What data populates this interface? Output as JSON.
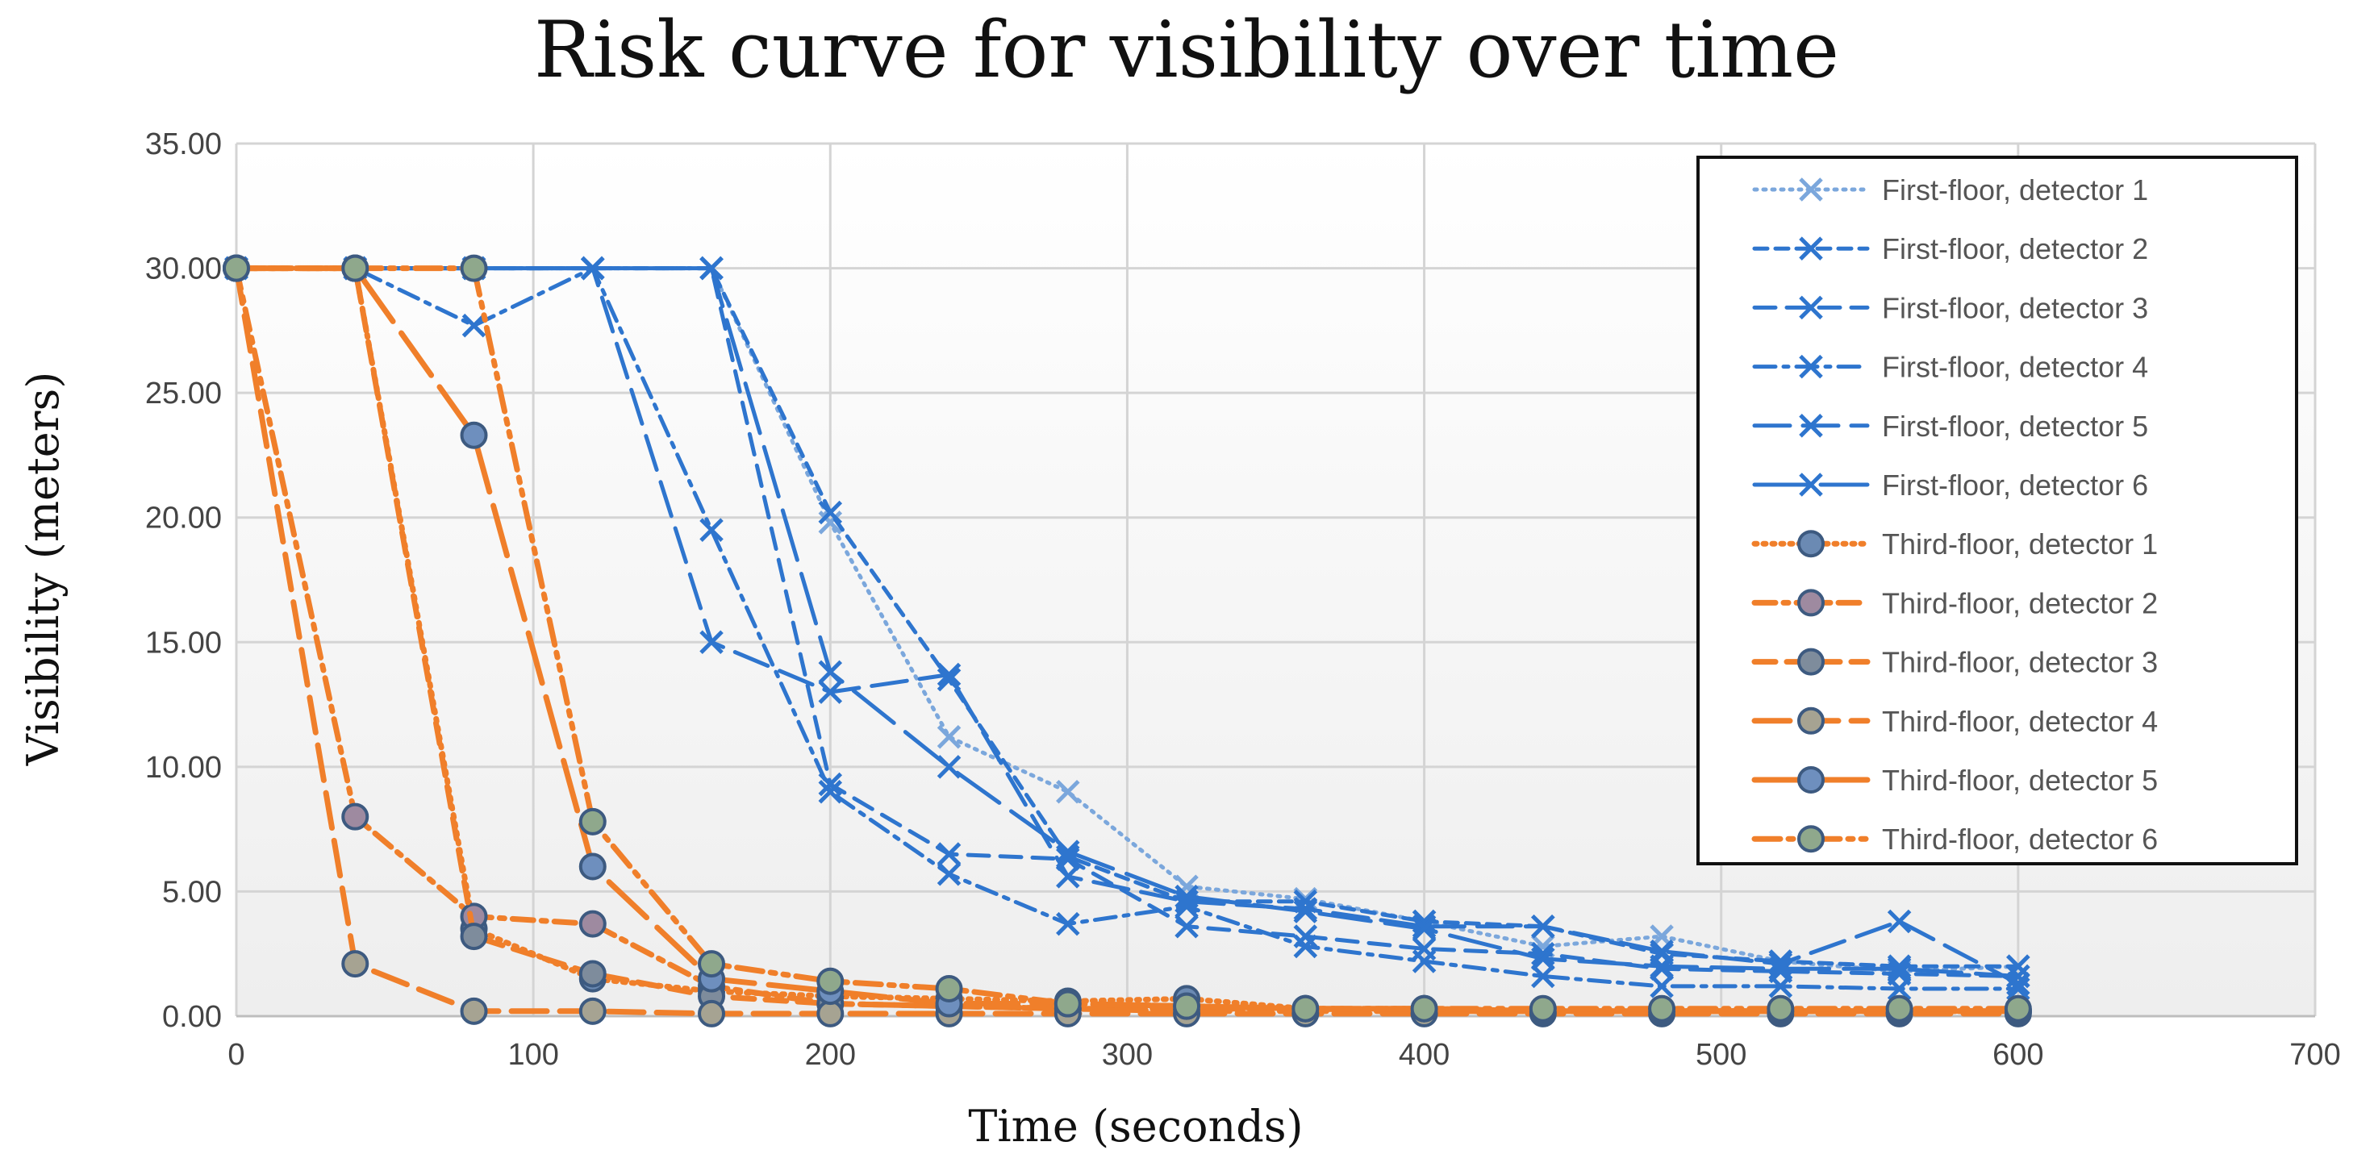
{
  "chart_data": {
    "type": "line",
    "title": "Risk curve for visibility over time",
    "xlabel": "Time (seconds)",
    "ylabel": "Visibility (meters)",
    "xlim": [
      0,
      700
    ],
    "ylim": [
      0,
      35
    ],
    "x_ticks": [
      0,
      100,
      200,
      300,
      400,
      500,
      600,
      700
    ],
    "y_ticks": [
      "0.00",
      "5.00",
      "10.00",
      "15.00",
      "20.00",
      "25.00",
      "30.00",
      "35.00"
    ],
    "y_tick_values": [
      0,
      5,
      10,
      15,
      20,
      25,
      30,
      35
    ],
    "grid": true,
    "legend_position": "top-right",
    "x": [
      0,
      40,
      80,
      120,
      160,
      200,
      240,
      280,
      320,
      360,
      400,
      440,
      480,
      520,
      560,
      600
    ],
    "series": [
      {
        "name": "First-floor, detector 1",
        "color": "#7BA7DC",
        "dash": "dot",
        "marker": "x",
        "values": [
          30,
          30,
          30,
          30,
          30,
          19.8,
          11.2,
          9.0,
          5.2,
          4.7,
          3.8,
          2.8,
          3.2,
          2.2,
          1.8,
          2.0
        ]
      },
      {
        "name": "First-floor, detector 2",
        "color": "#2E75CE",
        "dash": "short",
        "marker": "x",
        "values": [
          30,
          30,
          30,
          30,
          30,
          20.2,
          13.5,
          6.4,
          4.6,
          4.6,
          3.8,
          3.6,
          2.5,
          2.2,
          2.0,
          2.0
        ]
      },
      {
        "name": "First-floor, detector 3",
        "color": "#2E75CE",
        "dash": "medium",
        "marker": "x",
        "values": [
          30,
          30,
          30,
          30,
          30,
          9.3,
          6.5,
          6.3,
          3.6,
          3.2,
          2.7,
          2.5,
          1.9,
          1.8,
          1.7,
          1.6
        ]
      },
      {
        "name": "First-floor, detector 4",
        "color": "#2E75CE",
        "dash": "dashdot",
        "marker": "x",
        "values": [
          30,
          30,
          27.7,
          30,
          19.5,
          9.0,
          5.7,
          3.7,
          4.4,
          2.8,
          2.2,
          1.6,
          1.2,
          1.2,
          1.1,
          1.1
        ]
      },
      {
        "name": "First-floor, detector 5",
        "color": "#2E75CE",
        "dash": "long",
        "marker": "x",
        "values": [
          30,
          30,
          30,
          30,
          15.0,
          13.0,
          13.7,
          5.6,
          4.6,
          4.3,
          3.6,
          3.6,
          2.6,
          2.1,
          3.8,
          1.3
        ]
      },
      {
        "name": "First-floor, detector 6",
        "color": "#2E75CE",
        "dash": "longer",
        "marker": "x",
        "values": [
          30,
          30,
          30,
          30,
          30,
          13.8,
          10.0,
          6.6,
          4.8,
          4.2,
          3.5,
          2.3,
          2.0,
          1.9,
          1.9,
          1.6
        ]
      },
      {
        "name": "Third-floor, detector 1",
        "color": "#F07F2A",
        "dash": "dot",
        "marker": "circle",
        "markerFill": "#6B8AB3",
        "values": [
          30,
          30,
          3.5,
          1.5,
          1.0,
          0.8,
          0.7,
          0.6,
          0.7,
          0.3,
          0.3,
          0.2,
          0.2,
          0.2,
          0.2,
          0.2
        ]
      },
      {
        "name": "Third-floor, detector 2",
        "color": "#F07F2A",
        "dash": "dashdot",
        "marker": "circle",
        "markerFill": "#9E8AA0",
        "values": [
          30,
          8.0,
          4.0,
          3.7,
          1.2,
          0.5,
          0.4,
          0.3,
          0.2,
          0.2,
          0.2,
          0.2,
          0.2,
          0.2,
          0.2,
          0.2
        ]
      },
      {
        "name": "Third-floor, detector 3",
        "color": "#F07F2A",
        "dash": "medium",
        "marker": "circle",
        "markerFill": "#7E8C9C",
        "values": [
          30,
          30,
          3.2,
          1.7,
          0.8,
          0.5,
          0.4,
          0.3,
          0.3,
          0.3,
          0.2,
          0.2,
          0.2,
          0.2,
          0.2,
          0.2
        ]
      },
      {
        "name": "Third-floor, detector 4",
        "color": "#F07F2A",
        "dash": "long",
        "marker": "circle",
        "markerFill": "#A6A392",
        "values": [
          30,
          2.1,
          0.2,
          0.2,
          0.1,
          0.1,
          0.1,
          0.1,
          0.1,
          0.1,
          0.1,
          0.1,
          0.1,
          0.1,
          0.1,
          0.1
        ]
      },
      {
        "name": "Third-floor, detector 5",
        "color": "#F07F2A",
        "dash": "longer",
        "marker": "circle",
        "markerFill": "#6E8FBE",
        "values": [
          30,
          30,
          23.3,
          6.0,
          1.5,
          1.0,
          0.5,
          0.5,
          0.4,
          0.3,
          0.3,
          0.2,
          0.2,
          0.2,
          0.2,
          0.2
        ]
      },
      {
        "name": "Third-floor, detector 6",
        "color": "#F07F2A",
        "dash": "dashdotdot",
        "marker": "circle",
        "markerFill": "#8FA88C",
        "values": [
          30,
          30,
          30,
          7.8,
          2.1,
          1.4,
          1.1,
          0.5,
          0.4,
          0.3,
          0.3,
          0.3,
          0.3,
          0.3,
          0.3,
          0.3
        ]
      }
    ]
  }
}
